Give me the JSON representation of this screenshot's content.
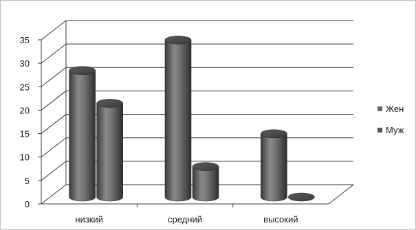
{
  "chart_data": {
    "type": "bar",
    "style": "3d-cylinder",
    "categories": [
      "низкий",
      "средний",
      "высокий"
    ],
    "series": [
      {
        "name": "Жен",
        "values": [
          27,
          33.5,
          13.5
        ],
        "color": "#6a6a6a"
      },
      {
        "name": "Муж",
        "values": [
          20,
          6.5,
          0
        ],
        "color": "#5a5a5a"
      }
    ],
    "yticks": [
      "0",
      "5",
      "10",
      "15",
      "20",
      "25",
      "30",
      "35"
    ],
    "ylim": [
      0,
      35
    ],
    "grid": true,
    "legend_position": "right"
  }
}
